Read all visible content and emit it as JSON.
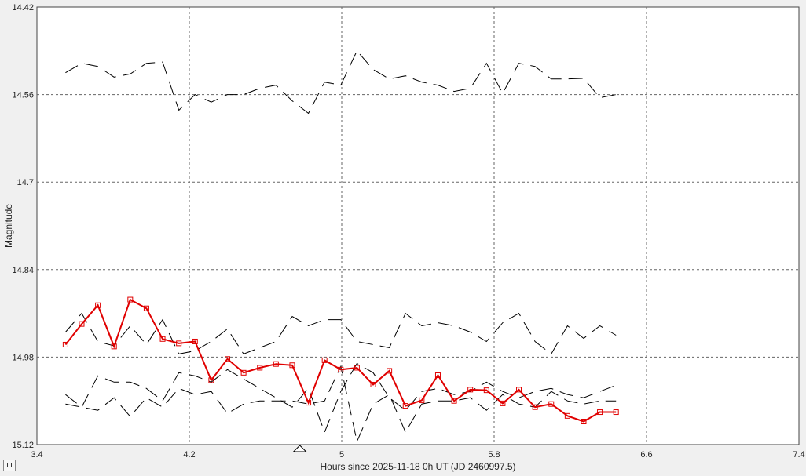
{
  "chart_data": {
    "type": "line",
    "xlabel": "Hours since 2025-11-18 0h UT (JD 2460997.5)",
    "ylabel": "Magnitude",
    "xlim": [
      3.4,
      7.4
    ],
    "ylim": [
      14.42,
      15.12
    ],
    "y_inverted": true,
    "xticks": [
      "3.4",
      "4.2",
      "5",
      "5.8",
      "6.6",
      "7.4"
    ],
    "yticks": [
      "14.42",
      "14.56",
      "14.7",
      "14.84",
      "14.98",
      "15.12"
    ],
    "grid": true,
    "marker_x": 4.78,
    "x": [
      3.55,
      3.635,
      3.72,
      3.805,
      3.89,
      3.975,
      4.06,
      4.145,
      4.23,
      4.315,
      4.4,
      4.485,
      4.57,
      4.655,
      4.74,
      4.825,
      4.91,
      4.995,
      5.08,
      5.165,
      5.25,
      5.335,
      5.42,
      5.505,
      5.59,
      5.675,
      5.76,
      5.845,
      5.93,
      6.015,
      6.1,
      6.185,
      6.27,
      6.355,
      6.44
    ],
    "series": [
      {
        "color": "#e00000",
        "style": "solid-markers",
        "values": [
          14.96,
          14.927,
          14.897,
          14.963,
          14.888,
          14.902,
          14.951,
          14.958,
          14.955,
          15.017,
          14.983,
          15.005,
          14.997,
          14.991,
          14.993,
          15.053,
          14.985,
          15.0,
          14.997,
          15.024,
          15.002,
          15.058,
          15.049,
          15.009,
          15.05,
          15.032,
          15.033,
          15.054,
          15.032,
          15.06,
          15.055,
          15.074,
          15.083,
          15.068,
          15.068
        ]
      },
      {
        "color": "#000000",
        "style": "dashed",
        "values": [
          14.525,
          14.51,
          14.515,
          14.532,
          14.527,
          14.51,
          14.508,
          14.585,
          14.56,
          14.572,
          14.56,
          14.56,
          14.55,
          14.545,
          14.57,
          14.59,
          14.54,
          14.545,
          14.49,
          14.52,
          14.535,
          14.53,
          14.54,
          14.545,
          14.555,
          14.55,
          14.51,
          14.558,
          14.51,
          14.515,
          14.535,
          14.535,
          14.534,
          14.565,
          14.56
        ]
      },
      {
        "color": "#000000",
        "style": "dashed",
        "values": [
          14.94,
          14.91,
          14.955,
          14.962,
          14.93,
          14.96,
          14.92,
          14.975,
          14.97,
          14.955,
          14.935,
          14.975,
          14.965,
          14.955,
          14.915,
          14.93,
          14.92,
          14.92,
          14.955,
          14.96,
          14.965,
          14.91,
          14.93,
          14.925,
          14.93,
          14.94,
          14.955,
          14.925,
          14.91,
          14.955,
          14.975,
          14.93,
          14.95,
          14.93,
          14.945
        ]
      },
      {
        "color": "#000000",
        "style": "dashed",
        "values": [
          15.04,
          15.06,
          15.01,
          15.02,
          15.02,
          15.03,
          15.05,
          15.005,
          15.01,
          15.02,
          15.0,
          15.015,
          15.03,
          15.045,
          15.06,
          15.03,
          15.1,
          15.035,
          14.99,
          15.005,
          15.045,
          15.065,
          15.035,
          15.03,
          15.04,
          15.035,
          15.02,
          15.035,
          15.045,
          15.035,
          15.03,
          15.04,
          15.045,
          15.035,
          15.025
        ]
      },
      {
        "color": "#000000",
        "style": "dashed",
        "values": [
          15.055,
          15.06,
          15.065,
          15.045,
          15.075,
          15.045,
          15.06,
          15.03,
          15.04,
          15.035,
          15.07,
          15.055,
          15.05,
          15.05,
          15.05,
          15.055,
          15.05,
          14.995,
          15.115,
          15.055,
          15.04,
          15.1,
          15.055,
          15.05,
          15.05,
          15.045,
          15.065,
          15.04,
          15.055,
          15.06,
          15.035,
          15.05,
          15.055,
          15.05,
          15.05
        ]
      }
    ]
  }
}
